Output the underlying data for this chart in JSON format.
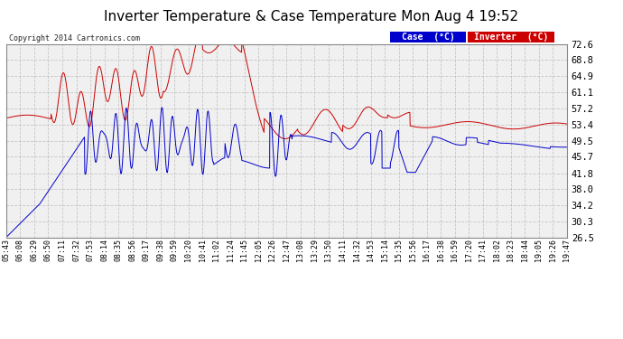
{
  "title": "Inverter Temperature & Case Temperature Mon Aug 4 19:52",
  "copyright": "Copyright 2014 Cartronics.com",
  "legend_case_label": "Case  (°C)",
  "legend_inverter_label": "Inverter  (°C)",
  "legend_case_color": "#0000cc",
  "legend_inverter_color": "#cc0000",
  "y_ticks": [
    26.5,
    30.3,
    34.2,
    38.0,
    41.8,
    45.7,
    49.5,
    53.4,
    57.2,
    61.1,
    64.9,
    68.8,
    72.6
  ],
  "ylim": [
    26.5,
    72.6
  ],
  "background_color": "#ffffff",
  "plot_bg_color": "#f0f0f0",
  "grid_color": "#bbbbbb",
  "title_fontsize": 11,
  "x_labels": [
    "05:43",
    "06:08",
    "06:29",
    "06:50",
    "07:11",
    "07:32",
    "07:53",
    "08:14",
    "08:35",
    "08:56",
    "09:17",
    "09:38",
    "09:59",
    "10:20",
    "10:41",
    "11:02",
    "11:24",
    "11:45",
    "12:05",
    "12:26",
    "12:47",
    "13:08",
    "13:29",
    "13:50",
    "14:11",
    "14:32",
    "14:53",
    "15:14",
    "15:35",
    "15:56",
    "16:17",
    "16:38",
    "16:59",
    "17:20",
    "17:41",
    "18:02",
    "18:23",
    "18:44",
    "19:05",
    "19:26",
    "19:47"
  ]
}
